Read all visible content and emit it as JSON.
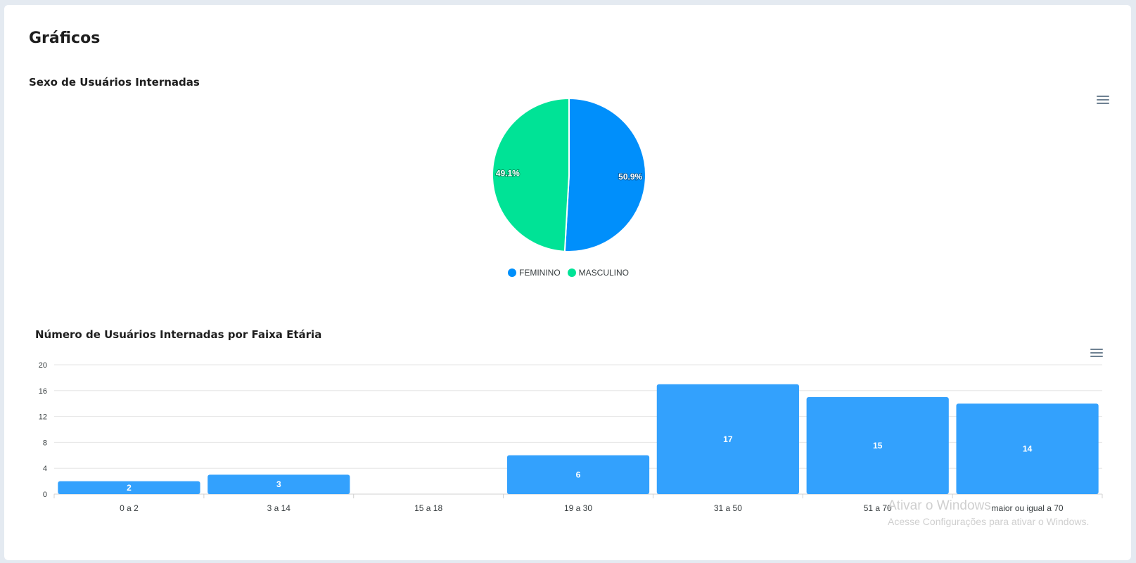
{
  "page": {
    "title": "Gráficos"
  },
  "colors": {
    "feminino": "#008ffb",
    "masculino": "#00e396",
    "bar": "#33a1fd"
  },
  "chart_data": [
    {
      "type": "pie",
      "title": "Sexo de Usuários Internadas",
      "labels": [
        "FEMININO",
        "MASCULINO"
      ],
      "values": [
        50.9,
        49.1
      ],
      "data_labels": [
        "50.9%",
        "49.1%"
      ],
      "legend": "bottom"
    },
    {
      "type": "bar",
      "title": "Número de Usuários Internadas por Faixa Etária",
      "categories": [
        "0 a 2",
        "3 a 14",
        "15 a 18",
        "19 a 30",
        "31 a 50",
        "51 a 70",
        "maior ou igual a 70"
      ],
      "values": [
        2,
        3,
        0,
        6,
        17,
        15,
        14
      ],
      "ylim": [
        0,
        20
      ],
      "yticks": [
        0,
        4,
        8,
        12,
        16,
        20
      ],
      "grid": true
    }
  ],
  "watermark": {
    "line1": "Ativar o Windows",
    "line2": "Acesse Configurações para ativar o Windows."
  }
}
